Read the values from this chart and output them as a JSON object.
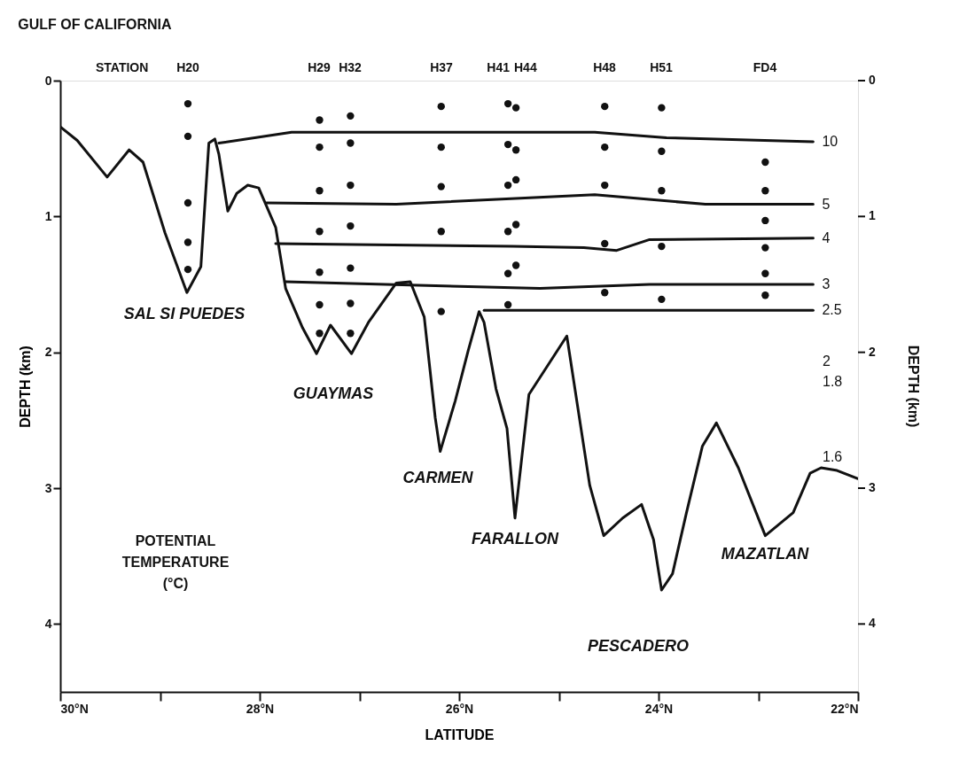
{
  "chart_data": {
    "type": "line",
    "title": "GULF OF CALIFORNIA",
    "xlabel": "LATITUDE",
    "ylabel": "DEPTH (km)",
    "y2label": "DEPTH (km)",
    "xlim": [
      30,
      22
    ],
    "ylim": [
      4.5,
      0
    ],
    "y2lim": [
      4.5,
      0
    ],
    "xticks": [
      {
        "value": 30,
        "label": "30°N"
      },
      {
        "value": 29,
        "label": null
      },
      {
        "value": 28,
        "label": "28°N"
      },
      {
        "value": 27,
        "label": null
      },
      {
        "value": 26,
        "label": "26°N"
      },
      {
        "value": 25,
        "label": null
      },
      {
        "value": 24,
        "label": "24°N"
      },
      {
        "value": 23,
        "label": null
      },
      {
        "value": 22,
        "label": "22°N"
      }
    ],
    "yticks": [
      0,
      1,
      2,
      3,
      4
    ],
    "y2ticks": [
      0,
      1,
      2,
      3,
      4
    ],
    "grid": false,
    "series": [
      {
        "color": "#111111",
        "x": [
          30,
          29.83,
          29.53,
          29.31,
          29.17,
          28.95,
          28.73,
          28.59,
          28.51,
          28.45,
          28.41,
          28.32,
          28.23,
          28.12,
          28.01,
          27.84,
          27.74,
          27.57,
          27.43,
          27.29,
          27.08,
          26.91,
          26.63,
          26.49,
          26.35,
          26.24,
          26.19,
          26.04,
          25.91,
          25.8,
          25.75,
          25.63,
          25.52,
          25.44,
          25.3,
          24.92,
          24.69,
          24.55,
          24.36,
          24.17,
          24.05,
          23.97,
          23.86,
          23.72,
          23.56,
          23.42,
          23.2,
          22.93,
          22.65,
          22.48,
          22.37,
          22.21,
          22.0
        ],
        "values": [
          0.34,
          0.44,
          0.71,
          0.51,
          0.6,
          1.12,
          1.56,
          1.37,
          0.46,
          0.43,
          0.54,
          0.96,
          0.83,
          0.77,
          0.79,
          1.08,
          1.53,
          1.82,
          2.01,
          1.8,
          2.01,
          1.78,
          1.49,
          1.48,
          1.74,
          2.48,
          2.73,
          2.36,
          1.99,
          1.7,
          1.78,
          2.27,
          2.56,
          3.22,
          2.31,
          1.88,
          2.98,
          3.35,
          3.22,
          3.12,
          3.38,
          3.75,
          3.63,
          3.18,
          2.69,
          2.52,
          2.85,
          3.35,
          3.18,
          2.89,
          2.85,
          2.87,
          2.93
        ]
      },
      {
        "name": "10",
        "color": "#111111",
        "x": [
          28.41,
          27.68,
          24.64,
          23.92,
          22.45
        ],
        "values": [
          0.46,
          0.38,
          0.38,
          0.42,
          0.45
        ]
      },
      {
        "name": "5",
        "color": "#111111",
        "x": [
          27.93,
          26.63,
          24.64,
          23.53,
          22.45
        ],
        "values": [
          0.9,
          0.91,
          0.84,
          0.91,
          0.91
        ]
      },
      {
        "name": "4",
        "color": "#111111",
        "x": [
          27.84,
          25.46,
          24.75,
          24.42,
          24.09,
          22.45
        ],
        "values": [
          1.2,
          1.22,
          1.23,
          1.25,
          1.17,
          1.16
        ]
      },
      {
        "name": "3",
        "color": "#111111",
        "x": [
          27.74,
          25.19,
          24.09,
          22.45
        ],
        "values": [
          1.48,
          1.53,
          1.5,
          1.5
        ]
      },
      {
        "name": "2.5",
        "color": "#111111",
        "x": [
          25.75,
          22.45
        ],
        "values": [
          1.69,
          1.69
        ]
      },
      {
        "type": "scatter",
        "marker": "circle",
        "color": "#111111",
        "x": [
          28.72,
          28.72,
          28.72,
          28.72,
          28.72,
          27.4,
          27.4,
          27.4,
          27.4,
          27.4,
          27.4,
          27.4,
          27.09,
          27.09,
          27.09,
          27.09,
          27.09,
          27.09,
          27.09,
          26.18,
          26.18,
          26.18,
          26.18,
          26.18,
          25.51,
          25.51,
          25.51,
          25.51,
          25.51,
          25.51,
          25.43,
          25.43,
          25.43,
          25.43,
          25.43,
          24.54,
          24.54,
          24.54,
          24.54,
          24.54,
          23.97,
          23.97,
          23.97,
          23.97,
          23.97,
          22.93,
          22.93,
          22.93,
          22.93,
          22.93,
          22.93
        ],
        "values": [
          0.17,
          0.41,
          0.9,
          1.19,
          1.39,
          0.29,
          0.49,
          0.81,
          1.11,
          1.41,
          1.65,
          1.86,
          0.26,
          0.46,
          0.77,
          1.07,
          1.38,
          1.64,
          1.86,
          0.19,
          0.49,
          0.78,
          1.11,
          1.7,
          0.17,
          0.47,
          0.77,
          1.11,
          1.42,
          1.65,
          0.2,
          0.51,
          0.73,
          1.06,
          1.36,
          0.19,
          0.49,
          0.77,
          1.2,
          1.56,
          0.2,
          0.52,
          0.81,
          1.22,
          1.61,
          0.6,
          0.81,
          1.03,
          1.23,
          1.42,
          1.58
        ]
      }
    ],
    "annotations": [
      "STATION",
      "H20",
      "H29",
      "H32",
      "H37",
      "H41",
      "H44",
      "H48",
      "H51",
      "FD4",
      "POTENTIAL TEMPERATURE (°C)",
      "SAL SI PUEDES",
      "GUAYMAS",
      "CARMEN",
      "FARALLON",
      "MAZATLAN",
      "PESCADERO",
      "2",
      "1.8",
      "1.6"
    ]
  }
}
